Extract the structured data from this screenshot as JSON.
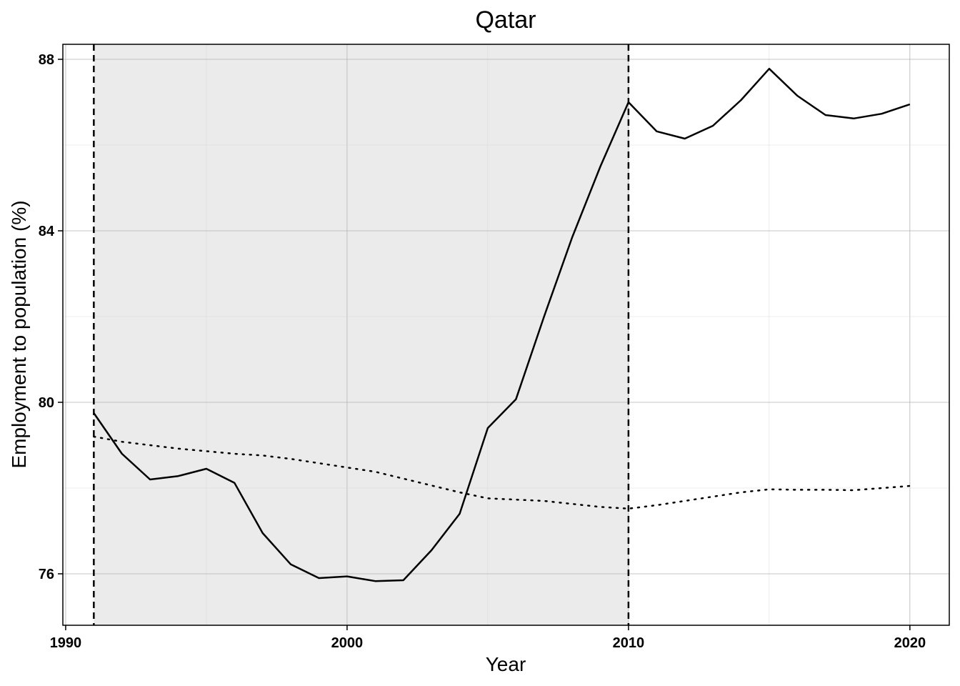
{
  "chart_data": {
    "type": "line",
    "title": "Qatar",
    "xlabel": "Year",
    "ylabel": "Employment to population (%)",
    "xlim": [
      1989.9,
      2021.4
    ],
    "ylim": [
      74.8,
      88.35
    ],
    "xticks": [
      1990,
      2000,
      2010,
      2020
    ],
    "yticks": [
      76,
      80,
      84,
      88
    ],
    "grid": true,
    "shaded_region": {
      "x_start": 1991,
      "x_end": 2010,
      "color": "#ebebeb"
    },
    "vlines": [
      1991,
      2010
    ],
    "series": [
      {
        "style": "solid",
        "x": [
          1991,
          1992,
          1993,
          1994,
          1995,
          1996,
          1997,
          1998,
          1999,
          2000,
          2001,
          2002,
          2003,
          2004,
          2005,
          2006,
          2007,
          2008,
          2009,
          2010,
          2011,
          2012,
          2013,
          2014,
          2015,
          2016,
          2017,
          2018,
          2019,
          2020
        ],
        "values": [
          79.75,
          78.8,
          78.2,
          78.28,
          78.45,
          78.12,
          76.95,
          76.22,
          75.9,
          75.94,
          75.83,
          75.85,
          76.55,
          77.4,
          79.4,
          80.07,
          82.0,
          83.85,
          85.5,
          87.0,
          86.32,
          86.15,
          86.45,
          87.05,
          87.78,
          87.15,
          86.7,
          86.62,
          86.73,
          86.95
        ]
      },
      {
        "style": "dotted",
        "x": [
          1991,
          1992,
          1993,
          1994,
          1995,
          1996,
          1997,
          1998,
          1999,
          2000,
          2001,
          2002,
          2003,
          2004,
          2005,
          2006,
          2007,
          2008,
          2009,
          2010,
          2011,
          2012,
          2013,
          2014,
          2015,
          2016,
          2017,
          2018,
          2019,
          2020
        ],
        "values": [
          79.2,
          79.08,
          79.0,
          78.92,
          78.86,
          78.8,
          78.76,
          78.68,
          78.58,
          78.48,
          78.38,
          78.22,
          78.06,
          77.9,
          77.76,
          77.73,
          77.7,
          77.63,
          77.56,
          77.52,
          77.6,
          77.7,
          77.8,
          77.9,
          77.97,
          77.96,
          77.96,
          77.95,
          78.0,
          78.05
        ]
      }
    ]
  }
}
